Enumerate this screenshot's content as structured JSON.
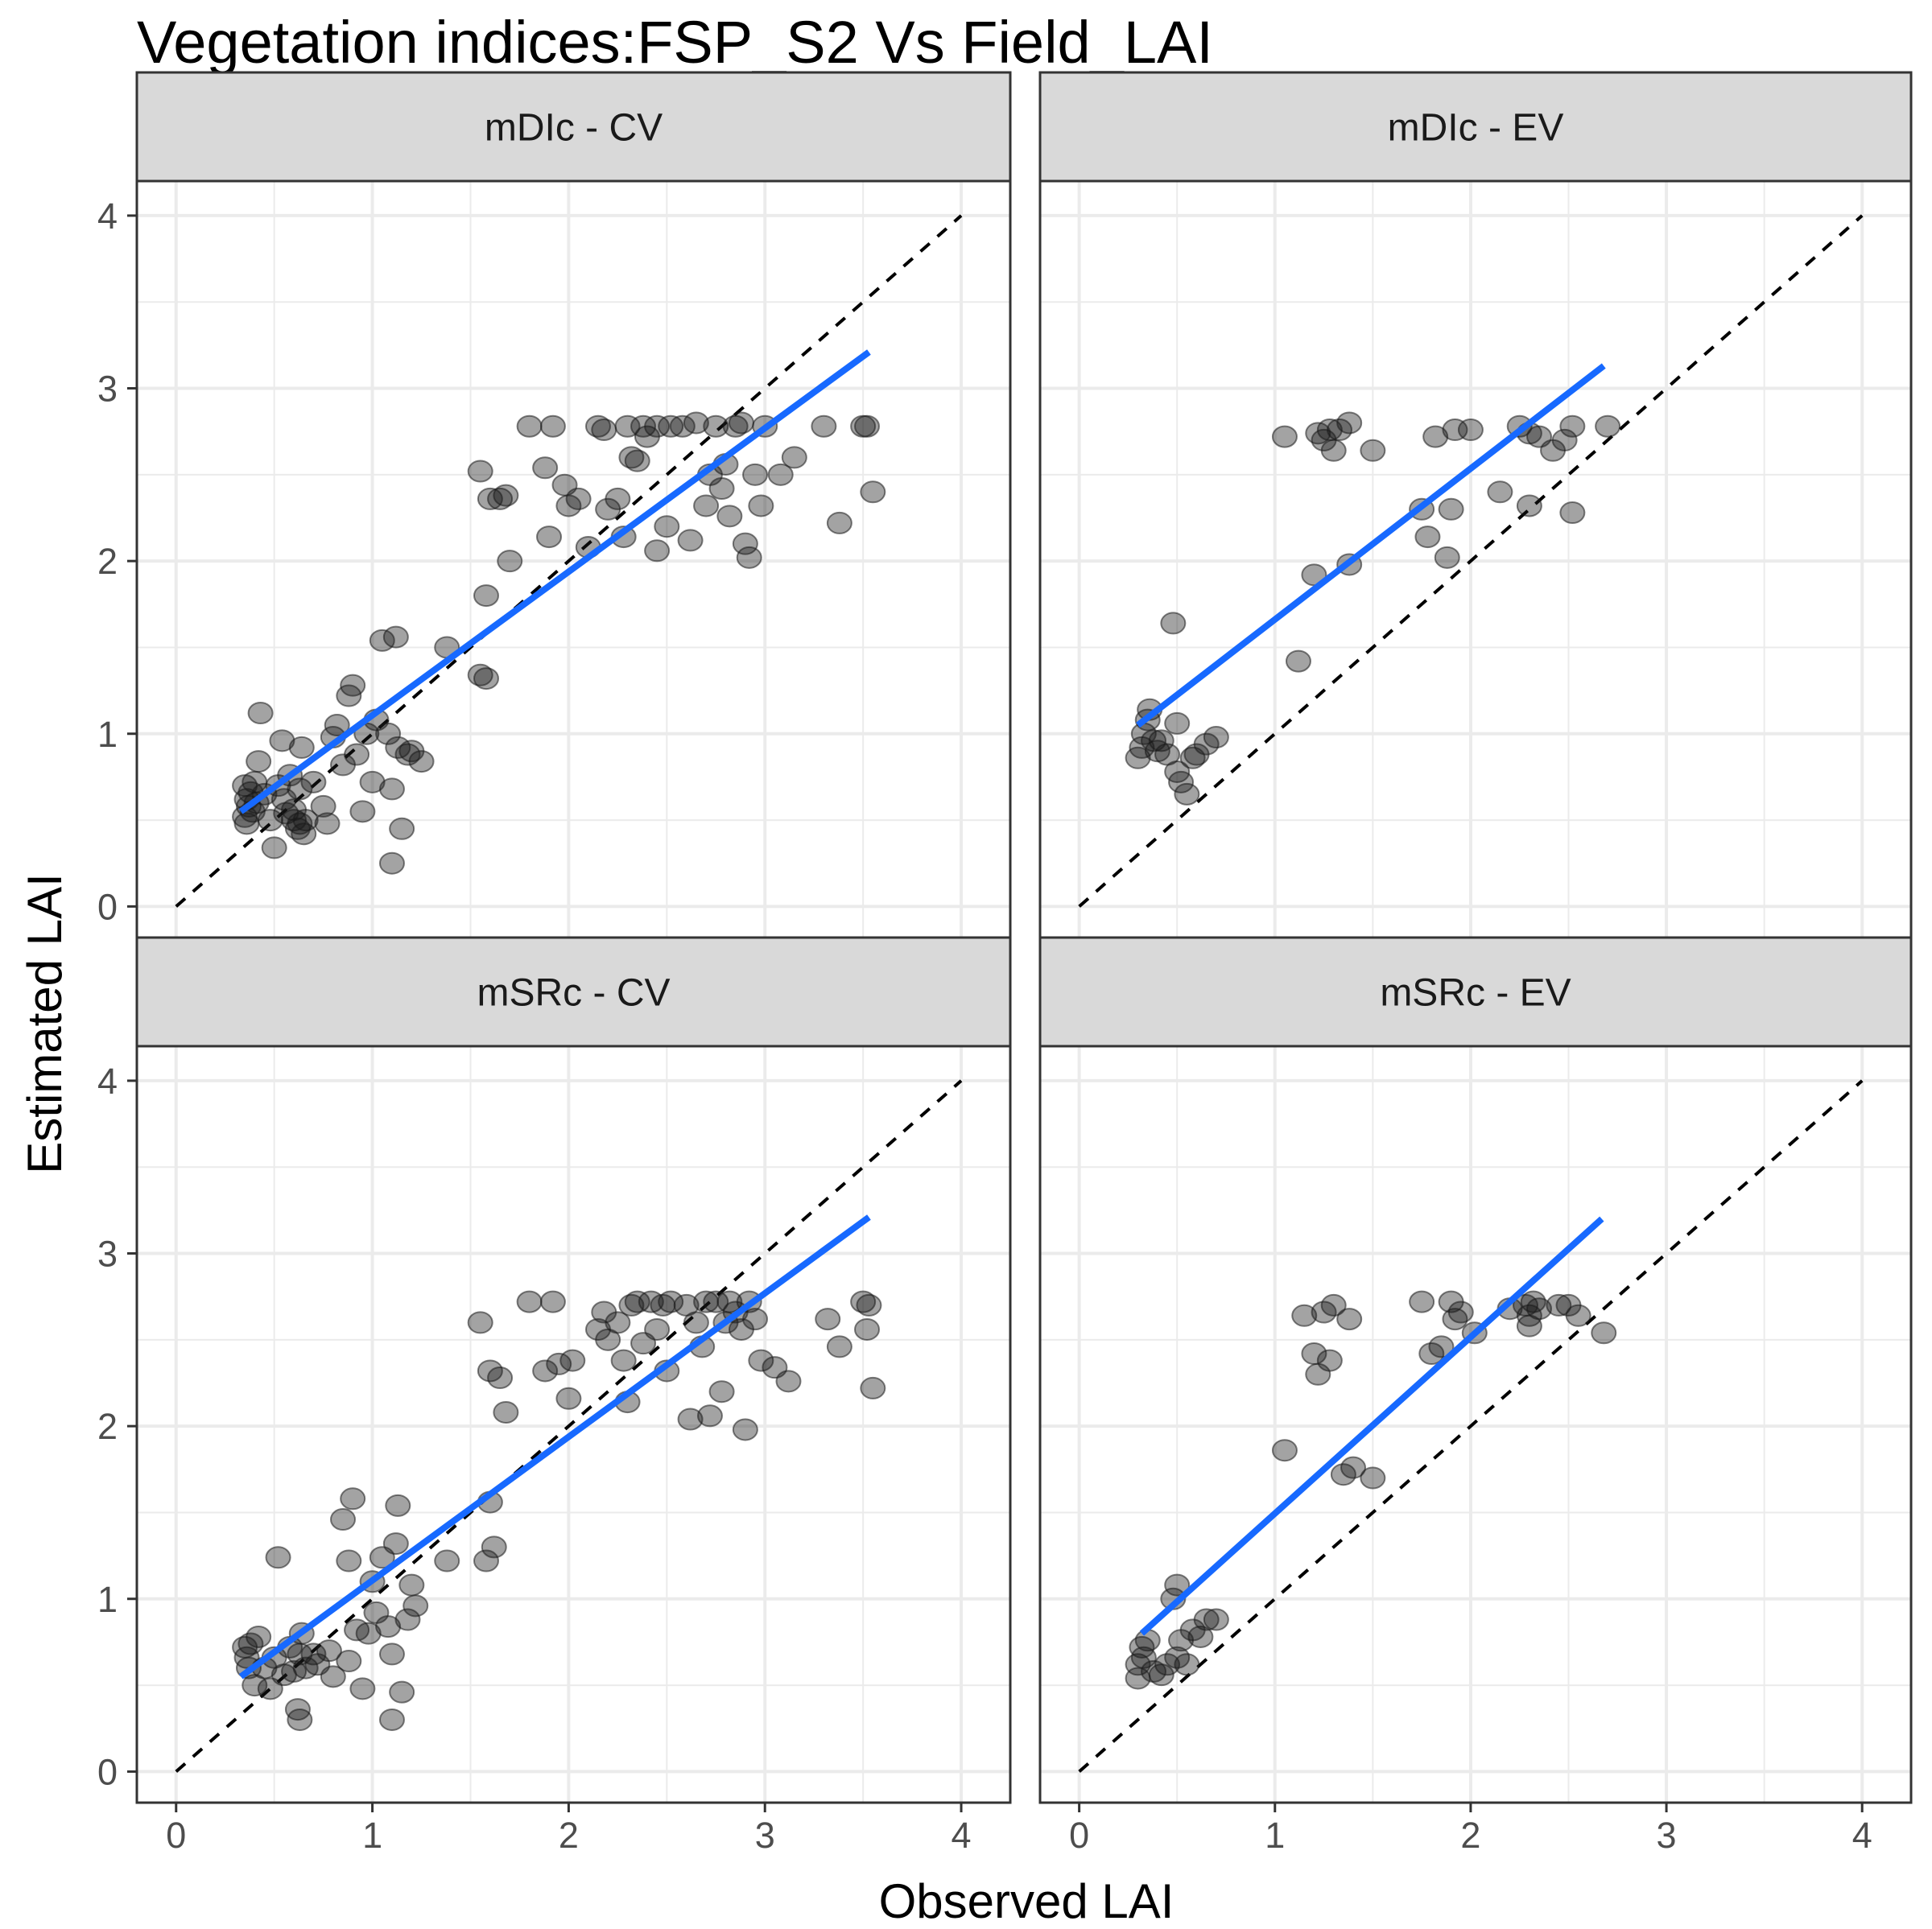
{
  "title": "Vegetation indices:FSP_S2 Vs Field_LAI",
  "chart_data": {
    "type": "scatter",
    "title": "Vegetation indices:FSP_S2 Vs Field_LAI",
    "xlabel": "Observed LAI",
    "ylabel": "Estimated LAI",
    "xlim": [
      -0.2,
      4.25
    ],
    "ylim": [
      -0.18,
      4.2
    ],
    "x_ticks": [
      0,
      1,
      2,
      3,
      4
    ],
    "y_ticks": [
      0,
      1,
      2,
      3,
      4
    ],
    "grid": true,
    "legend": "none",
    "colors": {
      "points": "#1a1a1a",
      "fit_line": "#1769ff",
      "identity_line": "#000000",
      "strip_fill": "#d9d9d9",
      "grid": "#ebebeb"
    },
    "panels": [
      {
        "label": "mDIc - CV",
        "fit_line": [
          [
            0.33,
            0.55
          ],
          [
            3.53,
            3.21
          ]
        ],
        "identity_line": [
          [
            0,
            0
          ],
          [
            4,
            4
          ]
        ],
        "points": [
          [
            0.35,
            0.7
          ],
          [
            0.36,
            0.62
          ],
          [
            0.37,
            0.58
          ],
          [
            0.35,
            0.52
          ],
          [
            0.38,
            0.66
          ],
          [
            0.4,
            0.72
          ],
          [
            0.36,
            0.48
          ],
          [
            0.39,
            0.55
          ],
          [
            0.41,
            0.6
          ],
          [
            0.45,
            0.65
          ],
          [
            0.42,
            0.84
          ],
          [
            0.43,
            1.12
          ],
          [
            0.48,
            0.5
          ],
          [
            0.5,
            0.34
          ],
          [
            0.52,
            0.7
          ],
          [
            0.54,
            0.96
          ],
          [
            0.55,
            0.62
          ],
          [
            0.56,
            0.54
          ],
          [
            0.58,
            0.76
          ],
          [
            0.6,
            0.5
          ],
          [
            0.6,
            0.56
          ],
          [
            0.62,
            0.45
          ],
          [
            0.63,
            0.48
          ],
          [
            0.63,
            0.68
          ],
          [
            0.64,
            0.92
          ],
          [
            0.65,
            0.42
          ],
          [
            0.66,
            0.5
          ],
          [
            0.7,
            0.72
          ],
          [
            0.75,
            0.58
          ],
          [
            0.77,
            0.48
          ],
          [
            0.8,
            0.98
          ],
          [
            0.82,
            1.05
          ],
          [
            0.85,
            0.82
          ],
          [
            0.88,
            1.22
          ],
          [
            0.9,
            1.28
          ],
          [
            0.92,
            0.88
          ],
          [
            0.95,
            0.55
          ],
          [
            0.97,
            1.0
          ],
          [
            1.0,
            0.72
          ],
          [
            1.02,
            1.08
          ],
          [
            1.05,
            1.54
          ],
          [
            1.08,
            1.0
          ],
          [
            1.1,
            0.25
          ],
          [
            1.1,
            0.68
          ],
          [
            1.12,
            1.56
          ],
          [
            1.13,
            0.92
          ],
          [
            1.15,
            0.45
          ],
          [
            1.18,
            0.88
          ],
          [
            1.2,
            0.9
          ],
          [
            1.25,
            0.84
          ],
          [
            1.38,
            1.5
          ],
          [
            1.55,
            1.34
          ],
          [
            1.58,
            1.32
          ],
          [
            1.58,
            1.8
          ],
          [
            1.6,
            2.36
          ],
          [
            1.55,
            2.52
          ],
          [
            1.65,
            2.36
          ],
          [
            1.68,
            2.38
          ],
          [
            1.7,
            2.0
          ],
          [
            1.8,
            2.78
          ],
          [
            1.88,
            2.54
          ],
          [
            1.9,
            2.14
          ],
          [
            1.92,
            2.78
          ],
          [
            1.98,
            2.44
          ],
          [
            2.0,
            2.32
          ],
          [
            2.05,
            2.36
          ],
          [
            2.1,
            2.08
          ],
          [
            2.15,
            2.78
          ],
          [
            2.18,
            2.76
          ],
          [
            2.2,
            2.3
          ],
          [
            2.25,
            2.36
          ],
          [
            2.28,
            2.14
          ],
          [
            2.3,
            2.78
          ],
          [
            2.32,
            2.6
          ],
          [
            2.35,
            2.58
          ],
          [
            2.38,
            2.78
          ],
          [
            2.4,
            2.72
          ],
          [
            2.45,
            2.78
          ],
          [
            2.45,
            2.06
          ],
          [
            2.5,
            2.2
          ],
          [
            2.52,
            2.78
          ],
          [
            2.58,
            2.78
          ],
          [
            2.62,
            2.12
          ],
          [
            2.65,
            2.8
          ],
          [
            2.7,
            2.32
          ],
          [
            2.72,
            2.5
          ],
          [
            2.75,
            2.78
          ],
          [
            2.78,
            2.42
          ],
          [
            2.8,
            2.56
          ],
          [
            2.82,
            2.26
          ],
          [
            2.85,
            2.78
          ],
          [
            2.88,
            2.8
          ],
          [
            2.9,
            2.1
          ],
          [
            2.92,
            2.02
          ],
          [
            2.95,
            2.5
          ],
          [
            2.98,
            2.32
          ],
          [
            3.0,
            2.78
          ],
          [
            3.08,
            2.5
          ],
          [
            3.15,
            2.6
          ],
          [
            3.3,
            2.78
          ],
          [
            3.38,
            2.22
          ],
          [
            3.5,
            2.78
          ],
          [
            3.52,
            2.78
          ],
          [
            3.55,
            2.4
          ]
        ]
      },
      {
        "label": "mDIc - EV",
        "fit_line": [
          [
            0.3,
            1.05
          ],
          [
            2.68,
            3.13
          ]
        ],
        "identity_line": [
          [
            0,
            0
          ],
          [
            4,
            4
          ]
        ],
        "points": [
          [
            0.3,
            0.86
          ],
          [
            0.32,
            0.92
          ],
          [
            0.33,
            1.0
          ],
          [
            0.35,
            1.08
          ],
          [
            0.36,
            1.14
          ],
          [
            0.38,
            0.96
          ],
          [
            0.4,
            0.9
          ],
          [
            0.42,
            0.96
          ],
          [
            0.45,
            0.88
          ],
          [
            0.48,
            1.64
          ],
          [
            0.5,
            1.06
          ],
          [
            0.5,
            0.78
          ],
          [
            0.52,
            0.72
          ],
          [
            0.55,
            0.65
          ],
          [
            0.58,
            0.86
          ],
          [
            0.6,
            0.88
          ],
          [
            0.65,
            0.94
          ],
          [
            0.7,
            0.98
          ],
          [
            1.05,
            2.72
          ],
          [
            1.12,
            1.42
          ],
          [
            1.2,
            1.92
          ],
          [
            1.22,
            2.74
          ],
          [
            1.25,
            2.7
          ],
          [
            1.28,
            2.76
          ],
          [
            1.3,
            2.64
          ],
          [
            1.33,
            2.76
          ],
          [
            1.38,
            2.8
          ],
          [
            1.38,
            1.98
          ],
          [
            1.5,
            2.64
          ],
          [
            1.75,
            2.3
          ],
          [
            1.78,
            2.14
          ],
          [
            1.82,
            2.72
          ],
          [
            1.88,
            2.02
          ],
          [
            1.9,
            2.3
          ],
          [
            1.92,
            2.76
          ],
          [
            2.0,
            2.76
          ],
          [
            2.15,
            2.4
          ],
          [
            2.25,
            2.78
          ],
          [
            2.3,
            2.74
          ],
          [
            2.3,
            2.32
          ],
          [
            2.35,
            2.72
          ],
          [
            2.42,
            2.64
          ],
          [
            2.48,
            2.7
          ],
          [
            2.52,
            2.78
          ],
          [
            2.52,
            2.28
          ],
          [
            2.7,
            2.78
          ]
        ]
      },
      {
        "label": "mSRc - CV",
        "fit_line": [
          [
            0.33,
            0.55
          ],
          [
            3.53,
            3.21
          ]
        ],
        "identity_line": [
          [
            0,
            0
          ],
          [
            4,
            4
          ]
        ],
        "points": [
          [
            0.35,
            0.72
          ],
          [
            0.36,
            0.66
          ],
          [
            0.37,
            0.6
          ],
          [
            0.38,
            0.74
          ],
          [
            0.4,
            0.5
          ],
          [
            0.42,
            0.78
          ],
          [
            0.45,
            0.6
          ],
          [
            0.48,
            0.48
          ],
          [
            0.5,
            0.66
          ],
          [
            0.52,
            1.24
          ],
          [
            0.55,
            0.56
          ],
          [
            0.58,
            0.72
          ],
          [
            0.6,
            0.58
          ],
          [
            0.62,
            0.36
          ],
          [
            0.63,
            0.3
          ],
          [
            0.63,
            0.68
          ],
          [
            0.64,
            0.8
          ],
          [
            0.66,
            0.6
          ],
          [
            0.7,
            0.68
          ],
          [
            0.72,
            0.62
          ],
          [
            0.78,
            0.7
          ],
          [
            0.8,
            0.55
          ],
          [
            0.85,
            1.46
          ],
          [
            0.88,
            0.64
          ],
          [
            0.88,
            1.22
          ],
          [
            0.9,
            1.58
          ],
          [
            0.92,
            0.82
          ],
          [
            0.95,
            0.48
          ],
          [
            0.98,
            0.8
          ],
          [
            1.0,
            1.1
          ],
          [
            1.02,
            0.92
          ],
          [
            1.05,
            1.24
          ],
          [
            1.08,
            0.84
          ],
          [
            1.1,
            0.3
          ],
          [
            1.1,
            0.68
          ],
          [
            1.12,
            1.32
          ],
          [
            1.13,
            1.54
          ],
          [
            1.15,
            0.46
          ],
          [
            1.18,
            0.88
          ],
          [
            1.2,
            1.08
          ],
          [
            1.22,
            0.96
          ],
          [
            1.38,
            1.22
          ],
          [
            1.55,
            2.6
          ],
          [
            1.58,
            1.22
          ],
          [
            1.6,
            2.32
          ],
          [
            1.6,
            1.56
          ],
          [
            1.62,
            1.3
          ],
          [
            1.65,
            2.28
          ],
          [
            1.68,
            2.08
          ],
          [
            1.8,
            2.72
          ],
          [
            1.88,
            2.32
          ],
          [
            1.92,
            2.72
          ],
          [
            1.95,
            2.36
          ],
          [
            2.0,
            2.16
          ],
          [
            2.02,
            2.38
          ],
          [
            2.15,
            2.56
          ],
          [
            2.18,
            2.66
          ],
          [
            2.2,
            2.5
          ],
          [
            2.25,
            2.6
          ],
          [
            2.28,
            2.38
          ],
          [
            2.3,
            2.14
          ],
          [
            2.32,
            2.7
          ],
          [
            2.35,
            2.72
          ],
          [
            2.38,
            2.48
          ],
          [
            2.42,
            2.72
          ],
          [
            2.45,
            2.56
          ],
          [
            2.48,
            2.7
          ],
          [
            2.5,
            2.32
          ],
          [
            2.52,
            2.72
          ],
          [
            2.6,
            2.7
          ],
          [
            2.62,
            2.04
          ],
          [
            2.65,
            2.6
          ],
          [
            2.68,
            2.46
          ],
          [
            2.7,
            2.72
          ],
          [
            2.72,
            2.06
          ],
          [
            2.75,
            2.72
          ],
          [
            2.78,
            2.2
          ],
          [
            2.8,
            2.6
          ],
          [
            2.82,
            2.72
          ],
          [
            2.85,
            2.66
          ],
          [
            2.88,
            2.56
          ],
          [
            2.9,
            1.98
          ],
          [
            2.92,
            2.72
          ],
          [
            2.95,
            2.62
          ],
          [
            2.98,
            2.38
          ],
          [
            3.05,
            2.34
          ],
          [
            3.12,
            2.26
          ],
          [
            3.32,
            2.62
          ],
          [
            3.38,
            2.46
          ],
          [
            3.5,
            2.72
          ],
          [
            3.52,
            2.56
          ],
          [
            3.53,
            2.7
          ],
          [
            3.55,
            2.22
          ]
        ]
      },
      {
        "label": "mSRc - EV",
        "fit_line": [
          [
            0.32,
            0.8
          ],
          [
            2.67,
            3.2
          ]
        ],
        "identity_line": [
          [
            0,
            0
          ],
          [
            4,
            4
          ]
        ],
        "points": [
          [
            0.3,
            0.62
          ],
          [
            0.3,
            0.54
          ],
          [
            0.32,
            0.72
          ],
          [
            0.33,
            0.66
          ],
          [
            0.35,
            0.76
          ],
          [
            0.38,
            0.58
          ],
          [
            0.42,
            0.56
          ],
          [
            0.45,
            0.62
          ],
          [
            0.48,
            1.0
          ],
          [
            0.5,
            1.08
          ],
          [
            0.5,
            0.66
          ],
          [
            0.52,
            0.76
          ],
          [
            0.55,
            0.62
          ],
          [
            0.58,
            0.82
          ],
          [
            0.62,
            0.78
          ],
          [
            0.65,
            0.88
          ],
          [
            0.7,
            0.88
          ],
          [
            1.05,
            1.86
          ],
          [
            1.15,
            2.64
          ],
          [
            1.2,
            2.42
          ],
          [
            1.22,
            2.3
          ],
          [
            1.25,
            2.66
          ],
          [
            1.28,
            2.38
          ],
          [
            1.3,
            2.7
          ],
          [
            1.35,
            1.72
          ],
          [
            1.4,
            1.76
          ],
          [
            1.38,
            2.62
          ],
          [
            1.5,
            1.7
          ],
          [
            1.75,
            2.72
          ],
          [
            1.8,
            2.42
          ],
          [
            1.85,
            2.46
          ],
          [
            1.9,
            2.72
          ],
          [
            1.92,
            2.62
          ],
          [
            1.95,
            2.66
          ],
          [
            2.02,
            2.54
          ],
          [
            2.2,
            2.68
          ],
          [
            2.28,
            2.7
          ],
          [
            2.3,
            2.58
          ],
          [
            2.3,
            2.64
          ],
          [
            2.32,
            2.72
          ],
          [
            2.35,
            2.68
          ],
          [
            2.45,
            2.7
          ],
          [
            2.5,
            2.7
          ],
          [
            2.55,
            2.64
          ],
          [
            2.68,
            2.54
          ]
        ]
      }
    ]
  }
}
